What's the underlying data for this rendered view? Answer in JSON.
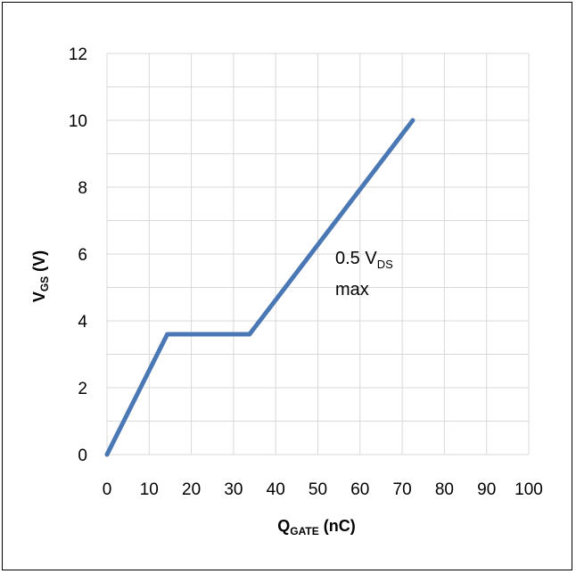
{
  "chart_data": {
    "type": "line",
    "x_ticks": [
      "0",
      "10",
      "20",
      "30",
      "40",
      "50",
      "60",
      "70",
      "80",
      "90",
      "100"
    ],
    "y_ticks": [
      "0",
      "2",
      "4",
      "6",
      "8",
      "10",
      "12"
    ],
    "xlim": [
      0,
      100
    ],
    "ylim": [
      0,
      12
    ],
    "grid": true,
    "xlabel": {
      "main": "Q",
      "sub": "GATE",
      "tail": " (nC)"
    },
    "ylabel": {
      "main": "V",
      "sub": "GS",
      "tail": " (V)"
    },
    "series": [
      {
        "color": "#4a78b5",
        "x": [
          0,
          14.3,
          33.8,
          72.5
        ],
        "y": [
          0,
          3.6,
          3.6,
          10
        ]
      }
    ],
    "annotation": {
      "line1_main": "0.5 V",
      "line1_sub": "DS",
      "line2": "max"
    }
  }
}
